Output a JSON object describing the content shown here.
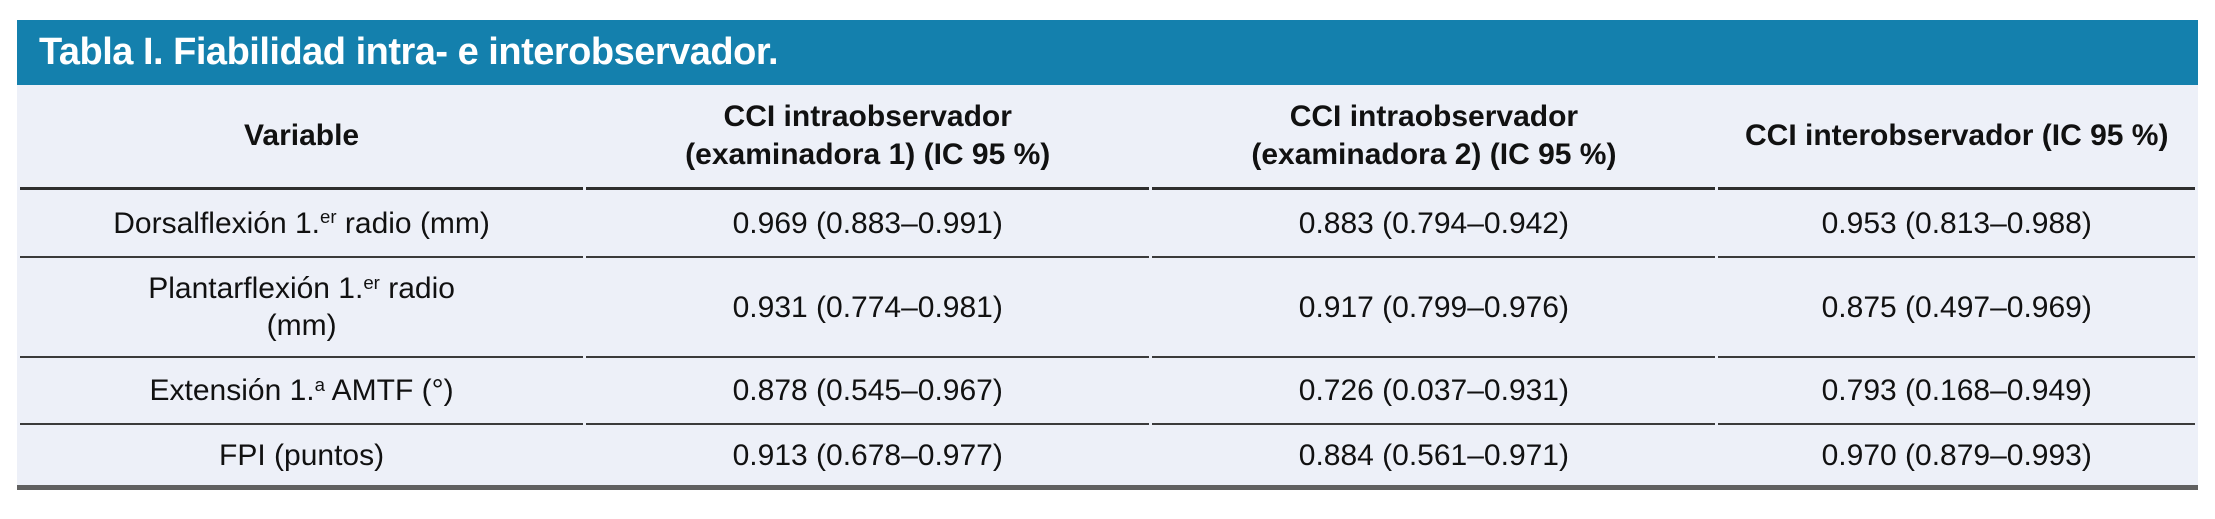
{
  "table": {
    "title": "Tabla I. Fiabilidad intra- e interobservador.",
    "columns": [
      {
        "label": "Variable"
      },
      {
        "line1": "CCI intraobservador",
        "line2": "(examinadora 1) (IC 95 %)"
      },
      {
        "line1": "CCI intraobservador",
        "line2": "(examinadora 2) (IC 95 %)"
      },
      {
        "label": "CCI interobservador (IC 95 %)"
      }
    ],
    "rows": [
      {
        "variable": {
          "pre": "Dorsalflexión 1.",
          "sup": "er",
          "post": " radio (mm)",
          "line2": ""
        },
        "cci_intra_ex1": "0.969 (0.883–0.991)",
        "cci_intra_ex2": "0.883 (0.794–0.942)",
        "cci_inter": "0.953 (0.813–0.988)"
      },
      {
        "variable": {
          "pre": "Plantarflexión 1.",
          "sup": "er",
          "post": " radio",
          "line2": "(mm)"
        },
        "cci_intra_ex1": "0.931 (0.774–0.981)",
        "cci_intra_ex2": "0.917 (0.799–0.976)",
        "cci_inter": "0.875 (0.497–0.969)"
      },
      {
        "variable": {
          "pre": "Extensión 1.",
          "sup": "a",
          "post": " AMTF (°)",
          "line2": ""
        },
        "cci_intra_ex1": "0.878 (0.545–0.967)",
        "cci_intra_ex2": "0.726 (0.037–0.931)",
        "cci_inter": "0.793 (0.168–0.949)"
      },
      {
        "variable": {
          "pre": "FPI (puntos)",
          "sup": "",
          "post": "",
          "line2": ""
        },
        "cci_intra_ex1": "0.913 (0.678–0.977)",
        "cci_intra_ex2": "0.884 (0.561–0.971)",
        "cci_inter": "0.970 (0.879–0.993)"
      }
    ],
    "colors": {
      "title_bar": "#1480ad",
      "title_text": "#ffffff",
      "row_background": "#edf0f8",
      "rule_line": "#3b3b3b",
      "bottom_border": "#606060",
      "body_text": "#111111"
    }
  }
}
